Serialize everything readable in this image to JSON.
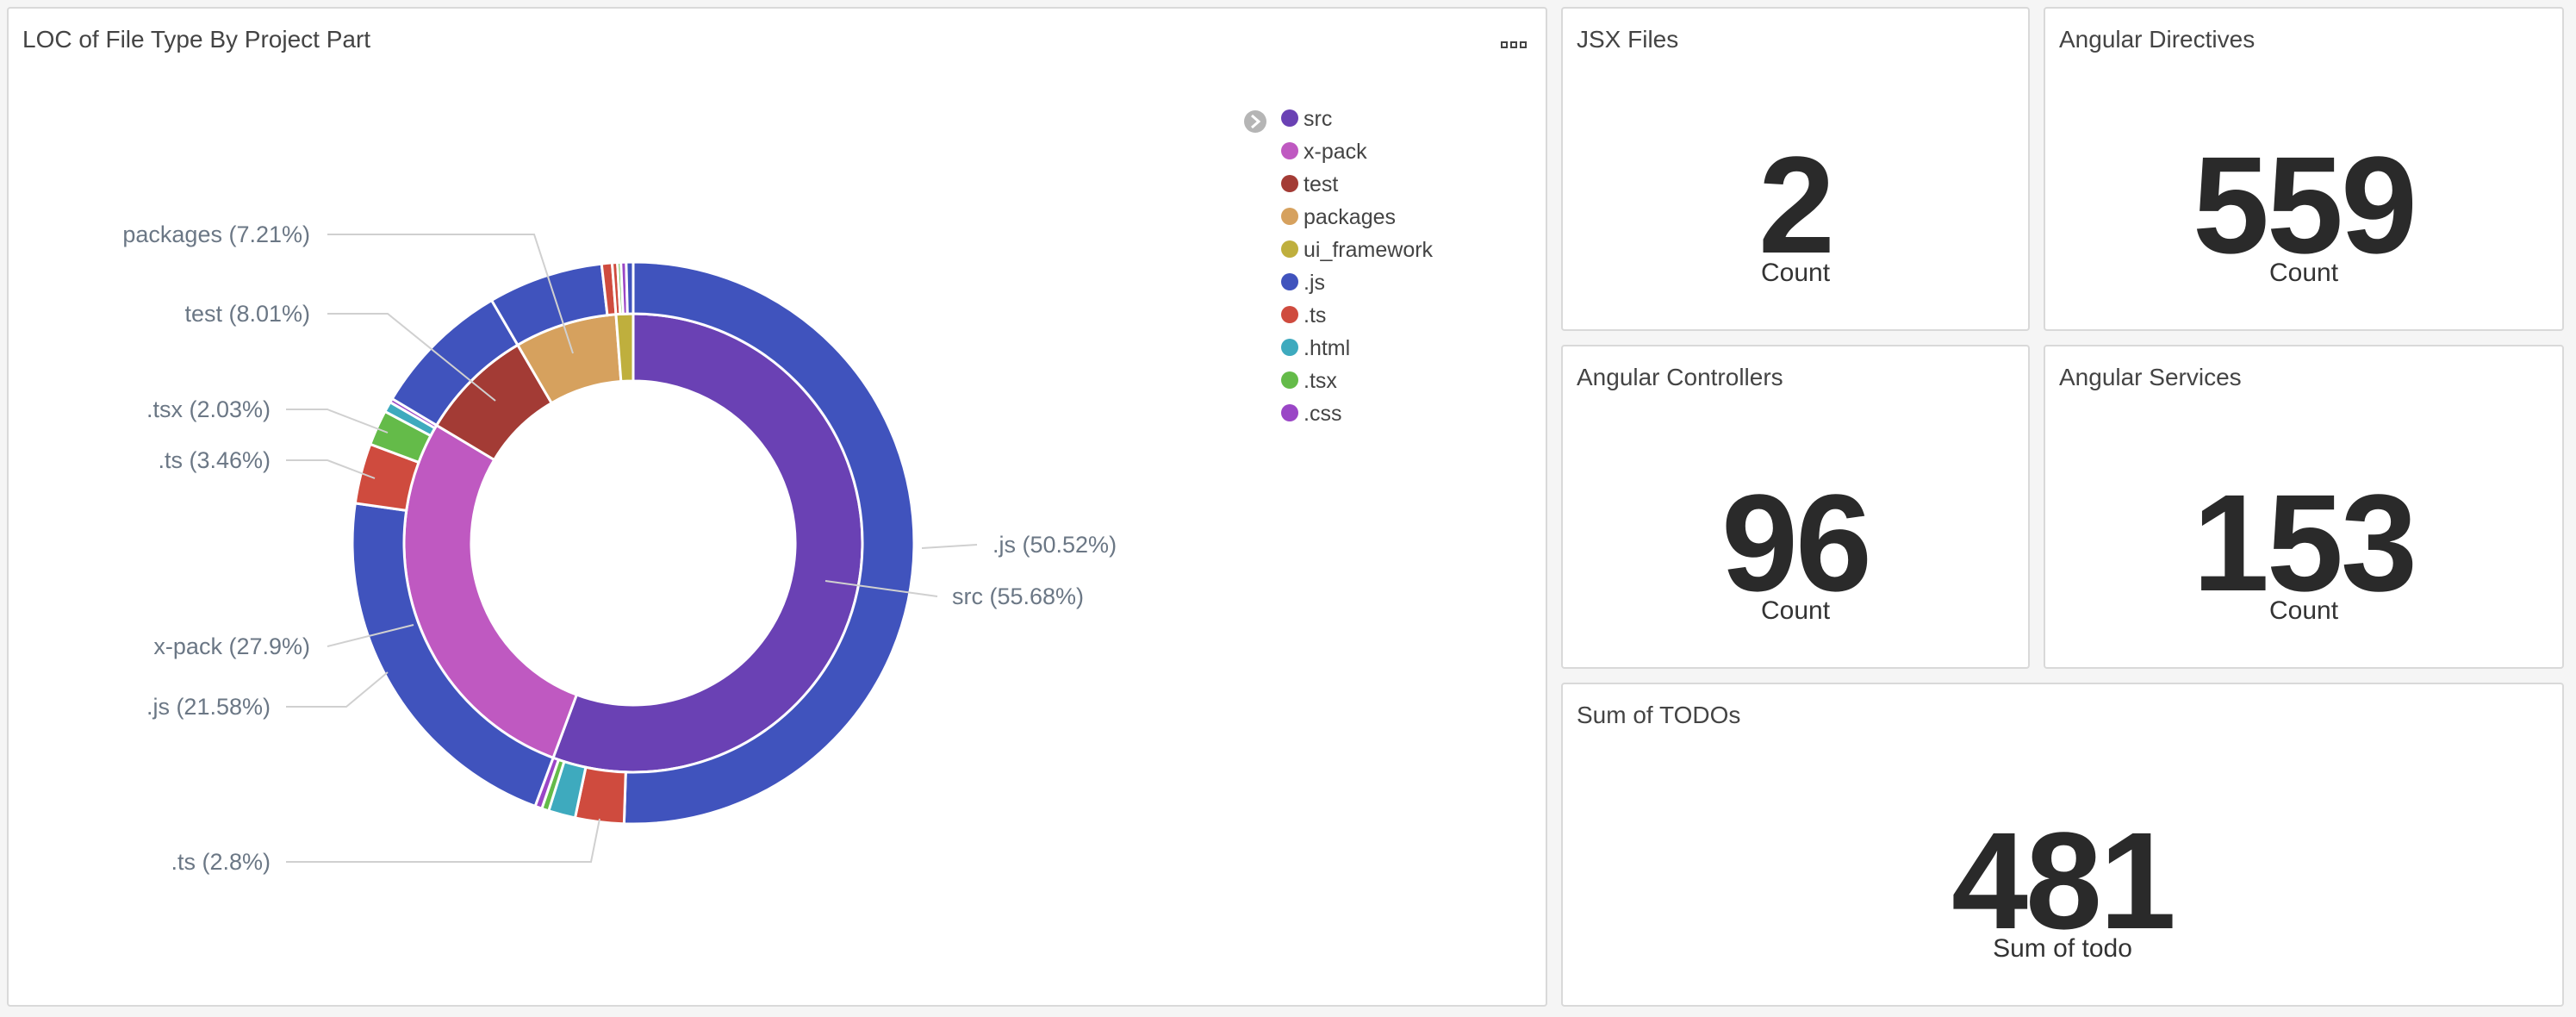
{
  "chart_panel": {
    "title": "LOC of File Type By Project Part"
  },
  "chart_data": {
    "type": "pie",
    "title": "LOC of File Type By Project Part",
    "donut": true,
    "legend_position": "top-right",
    "inner_ring": [
      {
        "name": "src",
        "value": 55.68,
        "color": "#6a41b4"
      },
      {
        "name": "x-pack",
        "value": 27.9,
        "color": "#bf59c1"
      },
      {
        "name": "test",
        "value": 8.01,
        "color": "#a33b35"
      },
      {
        "name": "packages",
        "value": 7.21,
        "color": "#d6a15e"
      },
      {
        "name": "ui_framework",
        "value": 1.2,
        "color": "#bfaf3d"
      }
    ],
    "outer_ring": [
      {
        "parent": "src",
        "name": ".js",
        "value": 50.52,
        "color": "#4053bd"
      },
      {
        "parent": "src",
        "name": ".ts",
        "value": 2.8,
        "color": "#cf4b3e"
      },
      {
        "parent": "src",
        "name": ".html",
        "value": 1.55,
        "color": "#3eaabe"
      },
      {
        "parent": "src",
        "name": ".tsx",
        "value": 0.41,
        "color": "#64bb49"
      },
      {
        "parent": "src",
        "name": ".css",
        "value": 0.4,
        "color": "#9a46c6"
      },
      {
        "parent": "x-pack",
        "name": ".js",
        "value": 21.58,
        "color": "#4053bd"
      },
      {
        "parent": "x-pack",
        "name": ".ts",
        "value": 3.46,
        "color": "#cf4b3e"
      },
      {
        "parent": "x-pack",
        "name": ".tsx",
        "value": 2.03,
        "color": "#64bb49"
      },
      {
        "parent": "x-pack",
        "name": ".html",
        "value": 0.6,
        "color": "#3eaabe"
      },
      {
        "parent": "x-pack",
        "name": ".css",
        "value": 0.23,
        "color": "#9a46c6"
      },
      {
        "parent": "test",
        "name": ".js",
        "value": 8.01,
        "color": "#4053bd"
      },
      {
        "parent": "packages",
        "name": ".js",
        "value": 6.61,
        "color": "#4053bd"
      },
      {
        "parent": "packages",
        "name": ".ts",
        "value": 0.6,
        "color": "#cf4b3e"
      },
      {
        "parent": "ui_framework",
        "name": ".ts",
        "value": 0.3,
        "color": "#cf4b3e"
      },
      {
        "parent": "ui_framework",
        "name": ".tsx",
        "value": 0.2,
        "color": "#64bb49"
      },
      {
        "parent": "ui_framework",
        "name": ".css",
        "value": 0.3,
        "color": "#9a46c6"
      },
      {
        "parent": "ui_framework",
        "name": ".js",
        "value": 0.4,
        "color": "#4053bd"
      }
    ],
    "labels": [
      {
        "text": "packages (7.21%)"
      },
      {
        "text": "test (8.01%)"
      },
      {
        "text": ".tsx (2.03%)"
      },
      {
        "text": ".ts (3.46%)"
      },
      {
        "text": "x-pack (27.9%)"
      },
      {
        "text": ".js (21.58%)"
      },
      {
        "text": ".ts (2.8%)"
      },
      {
        "text": ".js (50.52%)"
      },
      {
        "text": "src (55.68%)"
      }
    ],
    "legend": [
      {
        "name": "src",
        "color": "#6a41b4"
      },
      {
        "name": "x-pack",
        "color": "#bf59c1"
      },
      {
        "name": "test",
        "color": "#a33b35"
      },
      {
        "name": "packages",
        "color": "#d6a15e"
      },
      {
        "name": "ui_framework",
        "color": "#bfaf3d"
      },
      {
        "name": ".js",
        "color": "#4053bd"
      },
      {
        "name": ".ts",
        "color": "#cf4b3e"
      },
      {
        "name": ".html",
        "color": "#3eaabe"
      },
      {
        "name": ".tsx",
        "color": "#64bb49"
      },
      {
        "name": ".css",
        "color": "#9a46c6"
      }
    ]
  },
  "metrics": {
    "jsx": {
      "title": "JSX Files",
      "value": "2",
      "label": "Count"
    },
    "directives": {
      "title": "Angular Directives",
      "value": "559",
      "label": "Count"
    },
    "controllers": {
      "title": "Angular Controllers",
      "value": "96",
      "label": "Count"
    },
    "services": {
      "title": "Angular Services",
      "value": "153",
      "label": "Count"
    },
    "todos": {
      "title": "Sum of TODOs",
      "value": "481",
      "label": "Sum of todo"
    }
  }
}
